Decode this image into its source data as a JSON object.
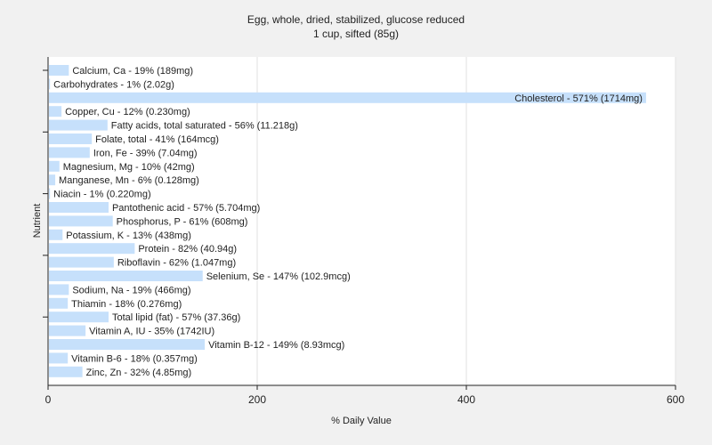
{
  "chart_data": {
    "type": "bar",
    "orientation": "horizontal",
    "title": "Egg, whole, dried, stabilized, glucose reduced",
    "subtitle": "1 cup, sifted (85g)",
    "xlabel": "% Daily Value",
    "ylabel": "Nutrient",
    "xlim": [
      0,
      600
    ],
    "xticks": [
      "0",
      "200",
      "400",
      "600"
    ],
    "grid": true,
    "bar_color": "#c6e0fb",
    "categories": [
      "Calcium, Ca",
      "Carbohydrates",
      "Cholesterol",
      "Copper, Cu",
      "Fatty acids, total saturated",
      "Folate, total",
      "Iron, Fe",
      "Magnesium, Mg",
      "Manganese, Mn",
      "Niacin",
      "Pantothenic acid",
      "Phosphorus, P",
      "Potassium, K",
      "Protein",
      "Riboflavin",
      "Selenium, Se",
      "Sodium, Na",
      "Thiamin",
      "Total lipid (fat)",
      "Vitamin A, IU",
      "Vitamin B-12",
      "Vitamin B-6",
      "Zinc, Zn"
    ],
    "values": [
      19,
      1,
      571,
      12,
      56,
      41,
      39,
      10,
      6,
      1,
      57,
      61,
      13,
      82,
      62,
      147,
      19,
      18,
      57,
      35,
      149,
      18,
      32
    ],
    "labels": [
      "Calcium, Ca - 19% (189mg)",
      "Carbohydrates - 1% (2.02g)",
      "Cholesterol - 571% (1714mg)",
      "Copper, Cu - 12% (0.230mg)",
      "Fatty acids, total saturated - 56% (11.218g)",
      "Folate, total - 41% (164mcg)",
      "Iron, Fe - 39% (7.04mg)",
      "Magnesium, Mg - 10% (42mg)",
      "Manganese, Mn - 6% (0.128mg)",
      "Niacin - 1% (0.220mg)",
      "Pantothenic acid - 57% (5.704mg)",
      "Phosphorus, P - 61% (608mg)",
      "Potassium, K - 13% (438mg)",
      "Protein - 82% (40.94g)",
      "Riboflavin - 62% (1.047mg)",
      "Selenium, Se - 147% (102.9mcg)",
      "Sodium, Na - 19% (466mg)",
      "Thiamin - 18% (0.276mg)",
      "Total lipid (fat) - 57% (37.36g)",
      "Vitamin A, IU - 35% (1742IU)",
      "Vitamin B-12 - 149% (8.93mcg)",
      "Vitamin B-6 - 18% (0.357mg)",
      "Zinc, Zn - 32% (4.85mg)"
    ]
  }
}
